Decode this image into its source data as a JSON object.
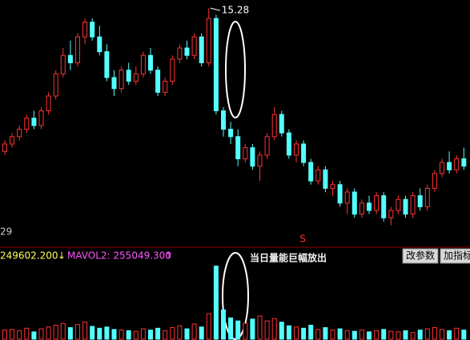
{
  "chart_data": {
    "type": "candlestick",
    "open": [
      11.4,
      11.6,
      11.8,
      12.0,
      12.3,
      12.1,
      12.5,
      12.9,
      13.5,
      14.0,
      13.8,
      14.5,
      14.9,
      14.5,
      14.1,
      13.4,
      13.1,
      13.6,
      13.3,
      13.5,
      14.0,
      13.6,
      13.0,
      13.3,
      13.9,
      14.2,
      14.0,
      14.5,
      13.8,
      15.0,
      12.5,
      12.0,
      11.8,
      11.2,
      11.5,
      11.0,
      11.3,
      11.8,
      12.4,
      11.9,
      11.3,
      11.6,
      11.1,
      10.6,
      10.9,
      10.4,
      10.5,
      10.0,
      10.3,
      9.7,
      10.0,
      9.8,
      10.2,
      9.6,
      9.8,
      10.1,
      9.7,
      10.2,
      9.9,
      10.4,
      10.8,
      11.1,
      10.9,
      11.2
    ],
    "high": [
      11.7,
      11.9,
      12.1,
      12.4,
      12.5,
      12.6,
      13.0,
      13.6,
      14.2,
      14.4,
      14.6,
      15.0,
      15.0,
      14.8,
      14.3,
      13.6,
      13.7,
      13.8,
      13.7,
      14.1,
      14.2,
      13.7,
      13.4,
      14.0,
      14.3,
      14.4,
      14.6,
      14.6,
      15.28,
      15.1,
      12.6,
      12.2,
      12.0,
      11.6,
      11.6,
      11.4,
      11.9,
      12.6,
      12.5,
      12.0,
      11.7,
      11.7,
      11.2,
      11.0,
      11.0,
      10.6,
      10.6,
      10.4,
      10.4,
      10.1,
      10.2,
      10.3,
      10.3,
      9.9,
      10.2,
      10.2,
      10.3,
      10.4,
      10.5,
      10.9,
      11.2,
      11.4,
      11.3,
      11.5
    ],
    "low": [
      11.3,
      11.5,
      11.7,
      11.9,
      12.0,
      12.0,
      12.4,
      12.8,
      13.4,
      13.6,
      13.7,
      14.3,
      14.4,
      14.0,
      13.3,
      12.9,
      13.0,
      13.2,
      13.2,
      13.4,
      13.5,
      12.9,
      12.9,
      13.2,
      13.8,
      13.9,
      13.9,
      13.7,
      13.7,
      12.4,
      11.8,
      11.6,
      11.0,
      11.1,
      10.9,
      10.6,
      11.2,
      11.7,
      11.8,
      11.2,
      11.1,
      11.0,
      10.5,
      10.5,
      10.3,
      10.2,
      9.9,
      9.7,
      9.6,
      9.6,
      9.7,
      9.7,
      9.5,
      9.4,
      9.7,
      9.6,
      9.6,
      9.8,
      9.8,
      10.3,
      10.7,
      10.8,
      10.8,
      10.9
    ],
    "close": [
      11.6,
      11.8,
      12.0,
      12.3,
      12.1,
      12.5,
      12.9,
      13.5,
      14.0,
      13.8,
      14.5,
      14.9,
      14.5,
      14.1,
      13.4,
      13.1,
      13.6,
      13.3,
      13.5,
      14.0,
      13.6,
      13.0,
      13.3,
      13.9,
      14.2,
      14.0,
      14.5,
      13.8,
      15.0,
      12.5,
      12.0,
      11.8,
      11.2,
      11.5,
      11.0,
      11.3,
      11.8,
      12.4,
      11.9,
      11.3,
      11.6,
      11.1,
      10.6,
      10.9,
      10.4,
      10.5,
      10.0,
      10.3,
      9.7,
      10.0,
      9.8,
      10.2,
      9.6,
      9.8,
      10.1,
      9.7,
      10.2,
      9.9,
      10.4,
      10.8,
      11.1,
      10.9,
      11.2,
      11.0
    ],
    "volume": [
      150000,
      160000,
      140000,
      180000,
      120000,
      170000,
      200000,
      230000,
      260000,
      190000,
      240000,
      280000,
      210000,
      180000,
      200000,
      160000,
      150000,
      140000,
      130000,
      170000,
      150000,
      180000,
      140000,
      190000,
      220000,
      170000,
      250000,
      200000,
      420000,
      1200000,
      480000,
      350000,
      300000,
      260000,
      330000,
      380000,
      300000,
      340000,
      280000,
      220000,
      200000,
      180000,
      230000,
      160000,
      190000,
      150000,
      170000,
      140000,
      130000,
      150000,
      120000,
      140000,
      160000,
      130000,
      120000,
      140000,
      110000,
      150000,
      170000,
      190000,
      160000,
      140000,
      180000,
      150000
    ],
    "ylim": [
      9.0,
      15.5
    ],
    "volume_ylim": [
      0,
      1300000
    ],
    "up_color": "#ff3232",
    "down_color": "#54ffff",
    "max_label": 15.28,
    "axis_label": "29",
    "signal": "S",
    "mavol1_value": "249602.200",
    "mavol1_arrow": "↓",
    "mavol2_label": "MAVOL2: 255049.300",
    "mavol2_arrow": "↑",
    "annotation": "当日量能巨幅放出",
    "buttons": [
      "改参数",
      "加指标"
    ]
  }
}
